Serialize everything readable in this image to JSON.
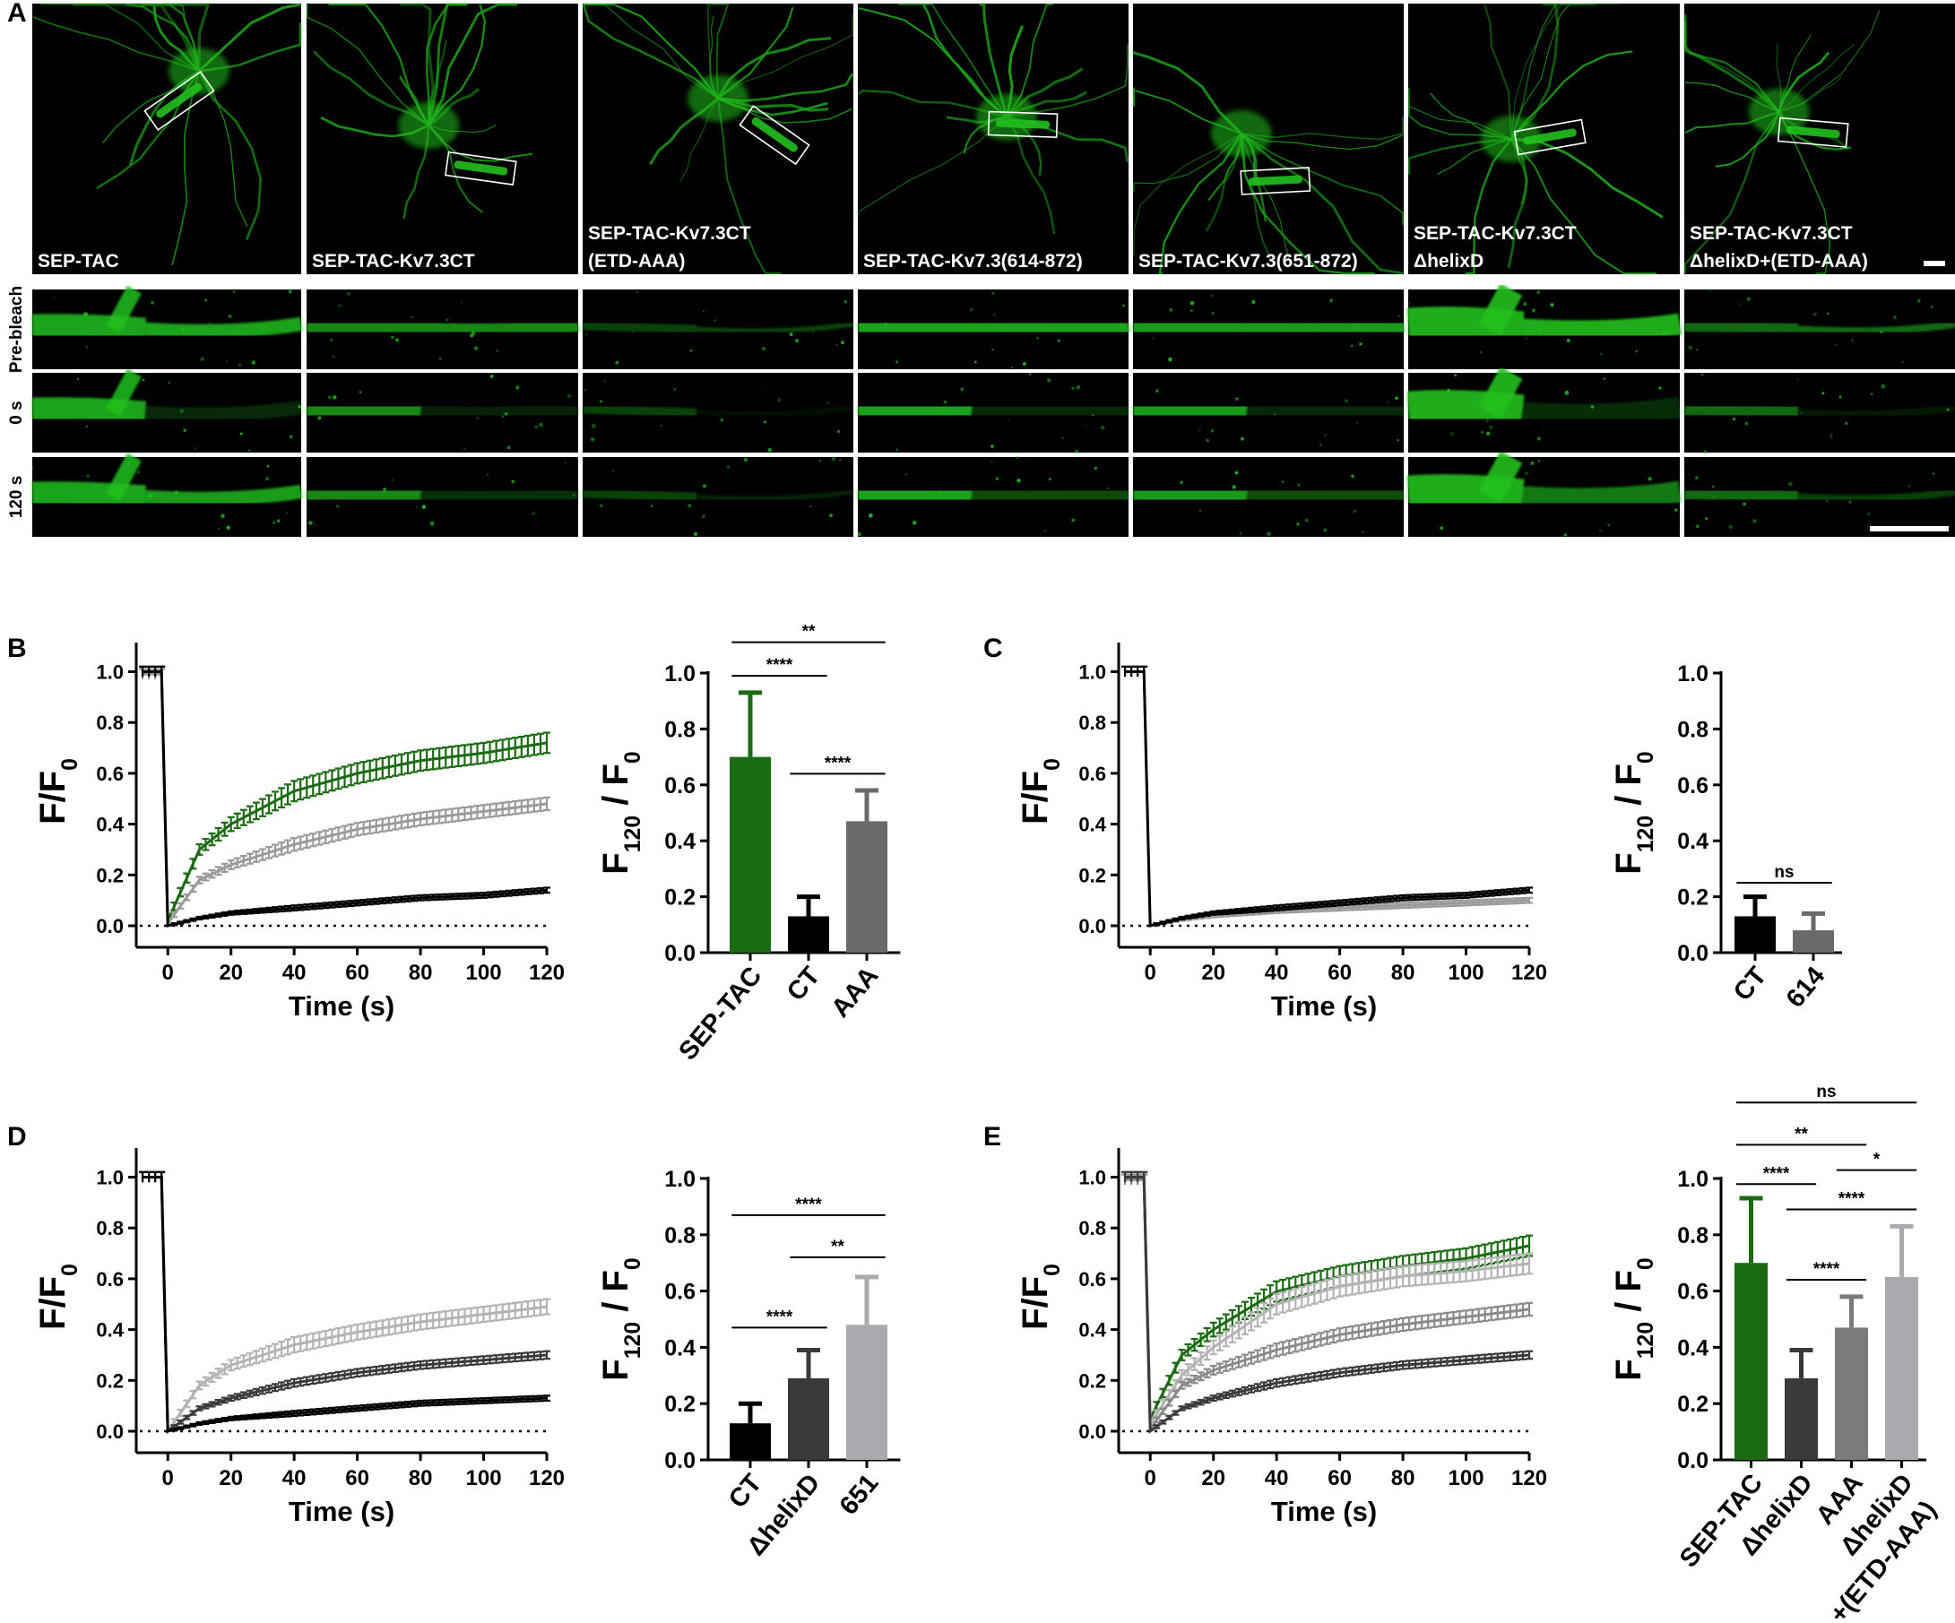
{
  "panel_letters": [
    "A",
    "B",
    "C",
    "D",
    "E"
  ],
  "panel_a": {
    "top_labels": [
      [
        "SEP-TAC"
      ],
      [
        "SEP-TAC-Kv7.3CT"
      ],
      [
        "SEP-TAC-Kv7.3CT",
        "(ETD-AAA)"
      ],
      [
        "SEP-TAC-Kv7.3(614-872)"
      ],
      [
        "SEP-TAC-Kv7.3(651-872)"
      ],
      [
        "SEP-TAC-Kv7.3CT",
        "ΔhelixD"
      ],
      [
        "SEP-TAC-Kv7.3CT",
        "ΔhelixD+(ETD-AAA)"
      ]
    ],
    "row_labels": [
      "Pre-bleach",
      "0 s",
      "120 s"
    ],
    "colors": {
      "background": "#000000",
      "signal": "#22c01e",
      "roi_box": "#ffffff"
    }
  },
  "chart_data": [
    {
      "id": "B-line",
      "type": "line",
      "panel": "B",
      "xlabel": "Time (s)",
      "ylabel": "F/F0",
      "xlim": [
        -10,
        120
      ],
      "ylim": [
        0,
        1.0
      ],
      "xticks": [
        0,
        20,
        40,
        60,
        80,
        100,
        120
      ],
      "yticks": [
        0.0,
        0.2,
        0.4,
        0.6,
        0.8,
        1.0
      ],
      "baseline": 0.0,
      "series": [
        {
          "color": "#1a6b12",
          "prebleach": 1.0,
          "values_at": [
            0,
            10,
            20,
            40,
            60,
            80,
            100,
            120
          ],
          "values": [
            0.02,
            0.3,
            0.4,
            0.53,
            0.6,
            0.65,
            0.68,
            0.72
          ],
          "error": 0.04
        },
        {
          "color": "#9a9a9a",
          "prebleach": 0.99,
          "values_at": [
            0,
            10,
            20,
            40,
            60,
            80,
            100,
            120
          ],
          "values": [
            0.01,
            0.18,
            0.24,
            0.32,
            0.38,
            0.42,
            0.45,
            0.48
          ],
          "error": 0.025
        },
        {
          "color": "#000000",
          "prebleach": 1.0,
          "values_at": [
            0,
            10,
            20,
            40,
            60,
            80,
            100,
            120
          ],
          "values": [
            0.0,
            0.03,
            0.05,
            0.07,
            0.09,
            0.11,
            0.12,
            0.14
          ],
          "error": 0.01
        }
      ]
    },
    {
      "id": "B-bar",
      "type": "bar",
      "panel": "B",
      "ylabel": "F120 / F0",
      "ylim": [
        0,
        1.0
      ],
      "yticks": [
        0.0,
        0.2,
        0.4,
        0.6,
        0.8,
        1.0
      ],
      "categories": [
        "SEP-TAC",
        "CT",
        "AAA"
      ],
      "values": [
        0.7,
        0.13,
        0.47
      ],
      "errors": [
        0.23,
        0.07,
        0.11
      ],
      "colors": [
        "#1a6b12",
        "#000000",
        "#6a6a6a"
      ],
      "significance": [
        {
          "from": 0,
          "to": 1,
          "label": "****",
          "level": 0.99
        },
        {
          "from": 0,
          "to": 2,
          "label": "**",
          "level": 1.11
        },
        {
          "from": 1,
          "to": 2,
          "label": "****",
          "level": 0.64
        }
      ]
    },
    {
      "id": "C-line",
      "type": "line",
      "panel": "C",
      "xlabel": "Time (s)",
      "ylabel": "F/F0",
      "xlim": [
        -10,
        120
      ],
      "ylim": [
        0,
        1.0
      ],
      "xticks": [
        0,
        20,
        40,
        60,
        80,
        100,
        120
      ],
      "yticks": [
        0.0,
        0.2,
        0.4,
        0.6,
        0.8,
        1.0
      ],
      "baseline": 0.0,
      "series": [
        {
          "color": "#9a9a9a",
          "prebleach": 1.0,
          "values_at": [
            0,
            10,
            20,
            40,
            60,
            80,
            100,
            120
          ],
          "values": [
            0.0,
            0.025,
            0.04,
            0.06,
            0.07,
            0.08,
            0.09,
            0.1
          ],
          "error": 0.01
        },
        {
          "color": "#000000",
          "prebleach": 1.0,
          "values_at": [
            0,
            10,
            20,
            40,
            60,
            80,
            100,
            120
          ],
          "values": [
            0.0,
            0.03,
            0.05,
            0.07,
            0.09,
            0.11,
            0.12,
            0.14
          ],
          "error": 0.01
        }
      ]
    },
    {
      "id": "C-bar",
      "type": "bar",
      "panel": "C",
      "ylabel": "F120 / F0",
      "ylim": [
        0,
        1.0
      ],
      "yticks": [
        0.0,
        0.2,
        0.4,
        0.6,
        0.8,
        1.0
      ],
      "categories": [
        "CT",
        "614"
      ],
      "values": [
        0.13,
        0.08
      ],
      "errors": [
        0.07,
        0.06
      ],
      "colors": [
        "#000000",
        "#6a6a6a"
      ],
      "significance": [
        {
          "from": 0,
          "to": 1,
          "label": "ns",
          "level": 0.25
        }
      ]
    },
    {
      "id": "D-line",
      "type": "line",
      "panel": "D",
      "xlabel": "Time (s)",
      "ylabel": "F/F0",
      "xlim": [
        -10,
        120
      ],
      "ylim": [
        0,
        1.0
      ],
      "xticks": [
        0,
        20,
        40,
        60,
        80,
        100,
        120
      ],
      "yticks": [
        0.0,
        0.2,
        0.4,
        0.6,
        0.8,
        1.0
      ],
      "baseline": 0.0,
      "series": [
        {
          "color": "#b3b3b3",
          "prebleach": 1.0,
          "values_at": [
            0,
            10,
            20,
            40,
            60,
            80,
            100,
            120
          ],
          "values": [
            0.0,
            0.18,
            0.26,
            0.34,
            0.39,
            0.43,
            0.46,
            0.49
          ],
          "error": 0.03
        },
        {
          "color": "#3a3a3a",
          "prebleach": 1.0,
          "values_at": [
            0,
            10,
            20,
            40,
            60,
            80,
            100,
            120
          ],
          "values": [
            0.0,
            0.09,
            0.13,
            0.19,
            0.23,
            0.26,
            0.28,
            0.3
          ],
          "error": 0.015
        },
        {
          "color": "#000000",
          "prebleach": 1.0,
          "values_at": [
            0,
            10,
            20,
            40,
            60,
            80,
            100,
            120
          ],
          "values": [
            0.0,
            0.03,
            0.05,
            0.07,
            0.09,
            0.11,
            0.12,
            0.13
          ],
          "error": 0.01
        }
      ]
    },
    {
      "id": "D-bar",
      "type": "bar",
      "panel": "D",
      "ylabel": "F120 / F0",
      "ylim": [
        0,
        1.0
      ],
      "yticks": [
        0.0,
        0.2,
        0.4,
        0.6,
        0.8,
        1.0
      ],
      "categories": [
        "CT",
        "ΔhelixD",
        "651"
      ],
      "values": [
        0.13,
        0.29,
        0.48
      ],
      "errors": [
        0.07,
        0.1,
        0.17
      ],
      "colors": [
        "#000000",
        "#3a3a3a",
        "#a9a9ae"
      ],
      "significance": [
        {
          "from": 0,
          "to": 2,
          "label": "****",
          "level": 0.87
        },
        {
          "from": 1,
          "to": 2,
          "label": "**",
          "level": 0.72
        },
        {
          "from": 0,
          "to": 1,
          "label": "****",
          "level": 0.47
        }
      ]
    },
    {
      "id": "E-line",
      "type": "line",
      "panel": "E",
      "xlabel": "Time (s)",
      "ylabel": "F/F0",
      "xlim": [
        -10,
        120
      ],
      "ylim": [
        0,
        1.0
      ],
      "xticks": [
        0,
        20,
        40,
        60,
        80,
        100,
        120
      ],
      "yticks": [
        0.0,
        0.2,
        0.4,
        0.6,
        0.8,
        1.0
      ],
      "baseline": 0.0,
      "series": [
        {
          "color": "#1a6b12",
          "prebleach": 1.0,
          "values_at": [
            0,
            10,
            20,
            40,
            60,
            80,
            100,
            120
          ],
          "values": [
            0.05,
            0.3,
            0.4,
            0.55,
            0.61,
            0.65,
            0.68,
            0.73
          ],
          "error": 0.04
        },
        {
          "color": "#b3b3b3",
          "prebleach": 1.0,
          "values_at": [
            0,
            10,
            20,
            40,
            60,
            80,
            100,
            120
          ],
          "values": [
            0.03,
            0.22,
            0.33,
            0.5,
            0.57,
            0.61,
            0.63,
            0.66
          ],
          "error": 0.04
        },
        {
          "color": "#8a8a8a",
          "prebleach": 0.99,
          "values_at": [
            0,
            10,
            20,
            40,
            60,
            80,
            100,
            120
          ],
          "values": [
            0.01,
            0.18,
            0.24,
            0.32,
            0.38,
            0.42,
            0.45,
            0.48
          ],
          "error": 0.025
        },
        {
          "color": "#3a3a3a",
          "prebleach": 1.0,
          "values_at": [
            0,
            10,
            20,
            40,
            60,
            80,
            100,
            120
          ],
          "values": [
            0.0,
            0.09,
            0.13,
            0.19,
            0.23,
            0.26,
            0.28,
            0.3
          ],
          "error": 0.015
        }
      ]
    },
    {
      "id": "E-bar",
      "type": "bar",
      "panel": "E",
      "ylabel": "F120 / F0",
      "ylim": [
        0,
        1.0
      ],
      "yticks": [
        0.0,
        0.2,
        0.4,
        0.6,
        0.8,
        1.0
      ],
      "categories": [
        "SEP-TAC",
        "ΔhelixD",
        "AAA",
        "ΔhelixD +(ETD-AAA)"
      ],
      "values": [
        0.7,
        0.29,
        0.47,
        0.65
      ],
      "errors": [
        0.23,
        0.1,
        0.11,
        0.18
      ],
      "colors": [
        "#1a6b12",
        "#3a3a3a",
        "#7a7a7a",
        "#a9a9ae"
      ],
      "significance": [
        {
          "from": 0,
          "to": 3,
          "label": "ns",
          "level": 1.27
        },
        {
          "from": 0,
          "to": 2,
          "label": "**",
          "level": 1.12
        },
        {
          "from": 0,
          "to": 1,
          "label": "****",
          "level": 0.98
        },
        {
          "from": 2,
          "to": 3,
          "label": "*",
          "level": 1.03
        },
        {
          "from": 1,
          "to": 3,
          "label": "****",
          "level": 0.89
        },
        {
          "from": 1,
          "to": 2,
          "label": "****",
          "level": 0.64
        }
      ]
    }
  ]
}
